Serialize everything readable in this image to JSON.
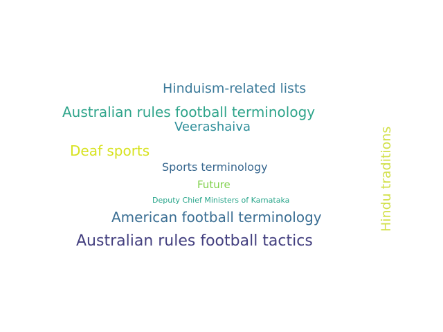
{
  "words": [
    {
      "id": "hinduism-related-lists",
      "text": "Hinduism-related lists",
      "color": "#3b7a9a"
    },
    {
      "id": "australian-rules-football-terminology",
      "text": "Australian rules football terminology",
      "color": "#2ea48a"
    },
    {
      "id": "veerashaiva",
      "text": "Veerashaiva",
      "color": "#2f8f9a"
    },
    {
      "id": "deaf-sports",
      "text": "Deaf sports",
      "color": "#d7e21f"
    },
    {
      "id": "sports-terminology",
      "text": "Sports terminology",
      "color": "#35658d"
    },
    {
      "id": "future",
      "text": "Future",
      "color": "#7fd04a"
    },
    {
      "id": "deputy-chief-ministers-of-karnataka",
      "text": "Deputy Chief Ministers of Karnataka",
      "color": "#27a58a"
    },
    {
      "id": "american-football-terminology",
      "text": "American football terminology",
      "color": "#3a6e93"
    },
    {
      "id": "australian-rules-football-tactics",
      "text": "Australian rules football tactics",
      "color": "#433f7f"
    },
    {
      "id": "hindu-traditions",
      "text": "Hindu traditions",
      "color": "#d2e04a"
    }
  ]
}
